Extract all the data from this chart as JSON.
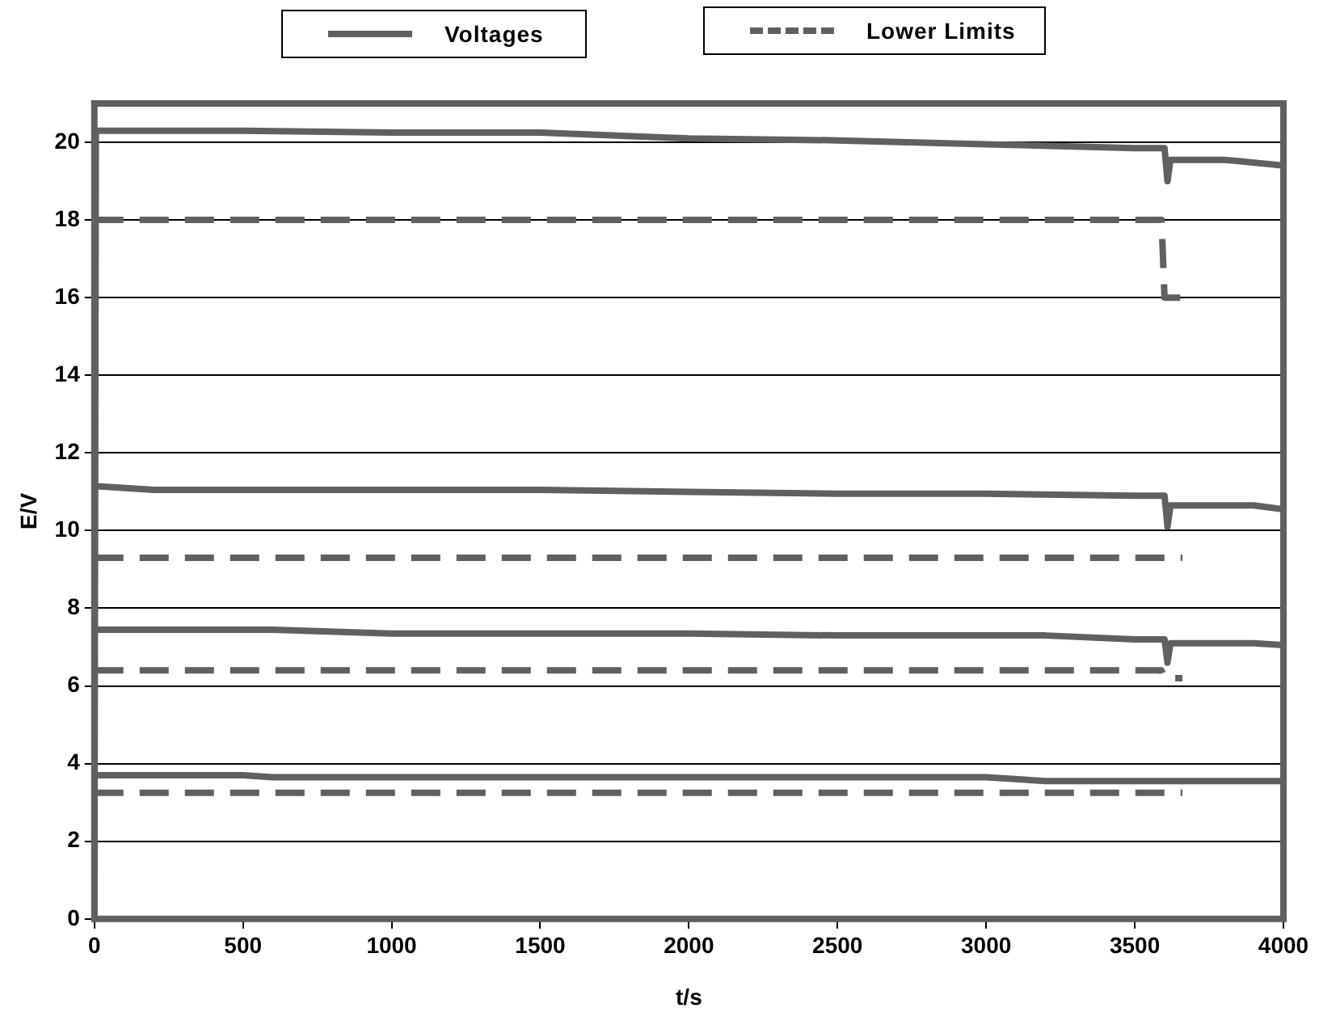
{
  "chart_data": {
    "type": "line",
    "xlabel": "t/s",
    "ylabel": "E/V",
    "xlim": [
      0,
      4000
    ],
    "ylim": [
      0,
      21
    ],
    "xticks": [
      0,
      500,
      1000,
      1500,
      2000,
      2500,
      3000,
      3500,
      4000
    ],
    "yticks": [
      0,
      2,
      4,
      6,
      8,
      10,
      12,
      14,
      16,
      18,
      20
    ],
    "grid": "y",
    "legend": "top",
    "marker": "none",
    "series": [
      {
        "name": "Voltages",
        "color": "#606060",
        "line_style": "solid",
        "x": [
          0,
          5,
          200,
          500,
          1000,
          1500,
          2000,
          2500,
          3000,
          3500,
          3600,
          3610,
          3620,
          3800,
          4000
        ],
        "values": [
          0,
          20.3,
          20.3,
          20.3,
          20.25,
          20.25,
          20.1,
          20.05,
          19.95,
          19.85,
          19.85,
          19.0,
          19.55,
          19.55,
          19.4
        ]
      },
      {
        "name": "Lower Limits",
        "color": "#606060",
        "line_style": "dashed",
        "x": [
          0,
          3590,
          3600,
          3660
        ],
        "values": [
          18,
          18,
          16,
          16
        ]
      },
      {
        "color": "#606060",
        "line_style": "solid",
        "x": [
          0,
          200,
          1500,
          2000,
          2500,
          3000,
          3500,
          3600,
          3610,
          3620,
          3900,
          4000
        ],
        "values": [
          11.15,
          11.05,
          11.05,
          11.0,
          10.95,
          10.95,
          10.9,
          10.9,
          10.1,
          10.65,
          10.65,
          10.55
        ]
      },
      {
        "color": "#606060",
        "line_style": "dashed",
        "x": [
          0,
          3660
        ],
        "values": [
          9.3,
          9.3
        ]
      },
      {
        "color": "#606060",
        "line_style": "solid",
        "x": [
          0,
          600,
          1000,
          2000,
          2500,
          3200,
          3500,
          3600,
          3610,
          3620,
          3900,
          4000
        ],
        "values": [
          7.45,
          7.45,
          7.35,
          7.35,
          7.3,
          7.3,
          7.2,
          7.2,
          6.6,
          7.1,
          7.1,
          7.05
        ]
      },
      {
        "color": "#606060",
        "line_style": "dashed",
        "x": [
          0,
          3590,
          3600,
          3660
        ],
        "values": [
          6.4,
          6.4,
          6.2,
          6.2
        ]
      },
      {
        "color": "#606060",
        "line_style": "solid",
        "x": [
          0,
          500,
          600,
          3000,
          3200,
          4000
        ],
        "values": [
          3.7,
          3.7,
          3.65,
          3.65,
          3.55,
          3.55
        ]
      },
      {
        "color": "#606060",
        "line_style": "dashed",
        "x": [
          0,
          3660
        ],
        "values": [
          3.25,
          3.25
        ]
      }
    ]
  }
}
